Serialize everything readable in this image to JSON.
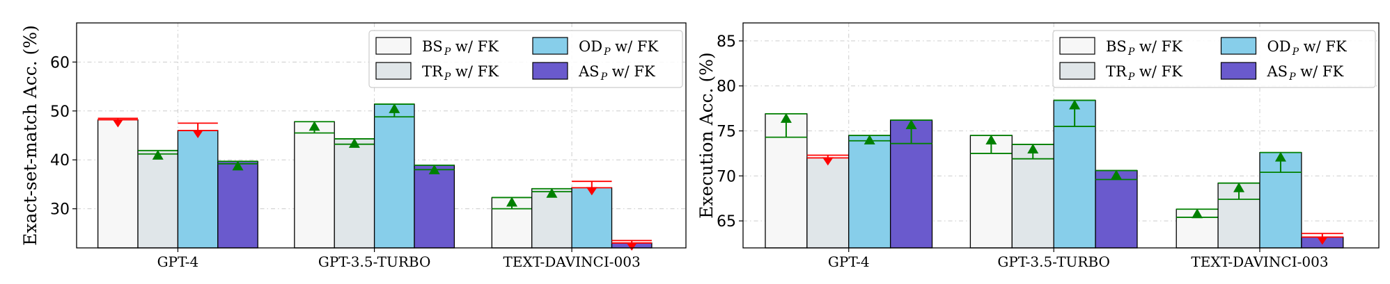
{
  "legend": [
    {
      "label": "BS",
      "sub": "P",
      "suffix": " w/ FK",
      "color": "#f7f7f7"
    },
    {
      "label": "TR",
      "sub": "P",
      "suffix": " w/ FK",
      "color": "#e0e6e9"
    },
    {
      "label": "OD",
      "sub": "P",
      "suffix": " w/ FK",
      "color": "#87ceea"
    },
    {
      "label": "AS",
      "sub": "P",
      "suffix": " w/ FK",
      "color": "#6a5acd"
    }
  ],
  "colors": {
    "increase": "#008000",
    "decrease": "#ff0000",
    "bar_edge": "#000000",
    "grid": "#cccccc"
  },
  "chart_data": [
    {
      "type": "bar",
      "ylabel": "Exact-set-match Acc. (%)",
      "categories": [
        "GPT-4",
        "GPT-3.5-TURBO",
        "TEXT-DAVINCI-003"
      ],
      "ylim": [
        22,
        68
      ],
      "yticks": [
        30,
        40,
        50,
        60
      ],
      "grid": true,
      "legend_position": "top-right",
      "series": [
        {
          "name": "BS_P w/ FK",
          "values": [
            48.2,
            47.8,
            32.3
          ],
          "baseline": [
            48.5,
            45.5,
            30.0
          ]
        },
        {
          "name": "TR_P w/ FK",
          "values": [
            41.9,
            44.3,
            34.1
          ],
          "baseline": [
            41.2,
            43.2,
            33.5
          ]
        },
        {
          "name": "OD_P w/ FK",
          "values": [
            46.0,
            51.4,
            34.3
          ],
          "baseline": [
            47.5,
            48.8,
            35.6
          ]
        },
        {
          "name": "AS_P w/ FK",
          "values": [
            39.7,
            38.9,
            23.0
          ],
          "baseline": [
            39.2,
            38.0,
            23.5
          ]
        }
      ]
    },
    {
      "type": "bar",
      "ylabel": "Execution Acc. (%)",
      "categories": [
        "GPT-4",
        "GPT-3.5-TURBO",
        "TEXT-DAVINCI-003"
      ],
      "ylim": [
        62,
        87
      ],
      "yticks": [
        65,
        70,
        75,
        80,
        85
      ],
      "grid": true,
      "legend_position": "top-right",
      "series": [
        {
          "name": "BS_P w/ FK",
          "values": [
            76.9,
            74.5,
            66.3
          ],
          "baseline": [
            74.3,
            72.5,
            65.4
          ]
        },
        {
          "name": "TR_P w/ FK",
          "values": [
            72.0,
            73.5,
            69.2
          ],
          "baseline": [
            72.3,
            71.9,
            67.4
          ]
        },
        {
          "name": "OD_P w/ FK",
          "values": [
            74.5,
            78.4,
            72.6
          ],
          "baseline": [
            73.9,
            75.5,
            70.4
          ]
        },
        {
          "name": "AS_P w/ FK",
          "values": [
            76.2,
            70.6,
            63.2
          ],
          "baseline": [
            73.6,
            69.6,
            63.6
          ]
        }
      ]
    }
  ]
}
